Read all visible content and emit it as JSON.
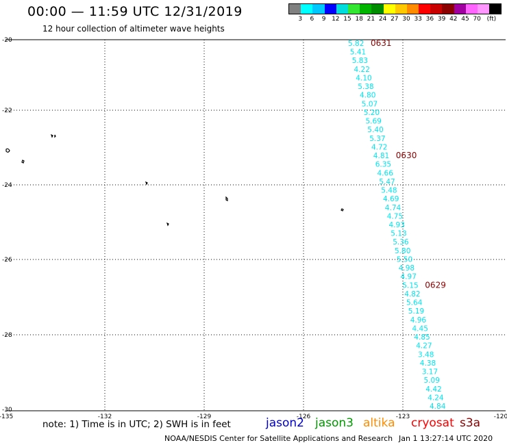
{
  "header": {
    "title": "00:00 — 11:59 UTC 12/31/2019",
    "subtitle": "12 hour collection of altimeter wave heights"
  },
  "colorbar": {
    "colors": [
      "#808080",
      "#00ffff",
      "#00c8ff",
      "#0000ff",
      "#00dcdc",
      "#32e632",
      "#00b400",
      "#008c00",
      "#ffff00",
      "#ffc800",
      "#ff8c00",
      "#ff0000",
      "#c80000",
      "#8b0000",
      "#a000a0",
      "#ff64ff",
      "#ff96ff",
      "#000000"
    ],
    "labels": [
      "3",
      "6",
      "9",
      "12",
      "15",
      "18",
      "21",
      "24",
      "27",
      "30",
      "33",
      "36",
      "39",
      "42",
      "45",
      "70",
      "(ft)"
    ]
  },
  "map": {
    "lon_ticks": [
      "-135",
      "-132",
      "-129",
      "-126",
      "-123",
      "-120"
    ],
    "lat_ticks": [
      "-20",
      "-22",
      "-24",
      "-26",
      "-28",
      "-30"
    ]
  },
  "track": {
    "color": "#00e5ee",
    "values": [
      "5.82",
      "5.41",
      "5.83",
      "4.22",
      "4.10",
      "5.38",
      "4.80",
      "5.07",
      "5.20",
      "5.69",
      "5.40",
      "5.37",
      "4.72",
      "4.81",
      "6.35",
      "4.66",
      "5.47",
      "5.48",
      "4.69",
      "4.74",
      "4.75",
      "4.93",
      "5.13",
      "5.36",
      "5.80",
      "5.50",
      "4.98",
      "4.97",
      "5.15",
      "4.82",
      "5.64",
      "5.19",
      "4.96",
      "4.45",
      "4.85",
      "4.27",
      "3.48",
      "4.38",
      "3.17",
      "5.09",
      "4.42",
      "4.24",
      "4.84"
    ],
    "time_labels": [
      {
        "text": "0631",
        "after_index": 0
      },
      {
        "text": "0630",
        "after_index": 13
      },
      {
        "text": "0629",
        "after_index": 28
      }
    ],
    "time_color": "#8b0000"
  },
  "footer": {
    "note": "note: 1) Time is in UTC; 2) SWH is in feet",
    "credit": "NOAA/NESDIS Center for Satellite Applications and Research",
    "timestamp": "Jan  1 13:27:14 UTC 2020"
  },
  "satellites": [
    {
      "name": "jason2",
      "color": "#0000cc"
    },
    {
      "name": "jason3",
      "color": "#009900"
    },
    {
      "name": "altika",
      "color": "#ff8c00"
    },
    {
      "name": "cryosat",
      "color": "#ff0000"
    },
    {
      "name": "s3a",
      "color": "#8b0000"
    }
  ]
}
